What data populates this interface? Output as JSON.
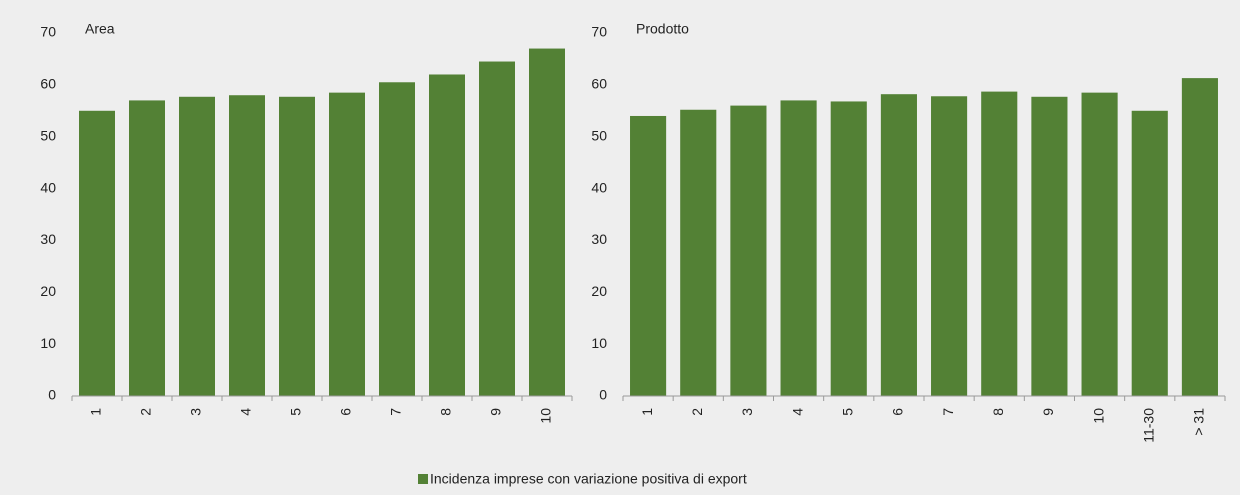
{
  "chart_data": [
    {
      "type": "bar",
      "title": "Area",
      "categories": [
        "1",
        "2",
        "3",
        "4",
        "5",
        "6",
        "7",
        "8",
        "9",
        "10"
      ],
      "series": [
        {
          "name": "Incidenza imprese con variazione positiva di export",
          "color": "#538135",
          "values": [
            55,
            57,
            57.7,
            58,
            57.7,
            58.5,
            60.5,
            62,
            64.5,
            67
          ]
        }
      ],
      "ylim": [
        0,
        70
      ],
      "yticks": [
        0,
        10,
        20,
        30,
        40,
        50,
        60,
        70
      ],
      "grid": false
    },
    {
      "type": "bar",
      "title": "Prodotto",
      "categories": [
        "1",
        "2",
        "3",
        "4",
        "5",
        "6",
        "7",
        "8",
        "9",
        "10",
        "11-30",
        "> 31"
      ],
      "color": "#538135",
      "values": [
        54,
        55.2,
        56,
        57,
        56.8,
        58.2,
        57.8,
        58.7,
        57.7,
        58.5,
        55,
        61.3
      ],
      "ylim": [
        0,
        70
      ],
      "yticks": [
        0,
        10,
        20,
        30,
        40,
        50,
        60,
        70
      ],
      "grid": false
    }
  ]
}
